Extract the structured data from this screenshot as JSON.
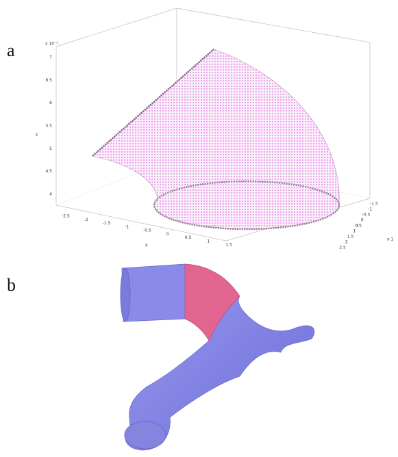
{
  "panels": [
    {
      "label": "a"
    },
    {
      "label": "b"
    }
  ],
  "plot": {
    "z_label": "z",
    "y_label": "y",
    "x_label": "x",
    "z_exponent": "x 10⁻³",
    "x_exponent": "x 1",
    "z_ticks": [
      "7",
      "6.5",
      "6",
      "5.5",
      "5",
      "4.5",
      "4"
    ],
    "y_ticks": [
      "-2.5",
      "-2",
      "-1.5",
      "-1",
      "-0.5",
      "0",
      "0.5",
      "1",
      "1.5"
    ],
    "x_ticks": [
      "-1.5",
      "-1",
      "-0.5",
      "0",
      "0.5",
      "1",
      "1.5",
      "2",
      "2.5"
    ]
  }
}
